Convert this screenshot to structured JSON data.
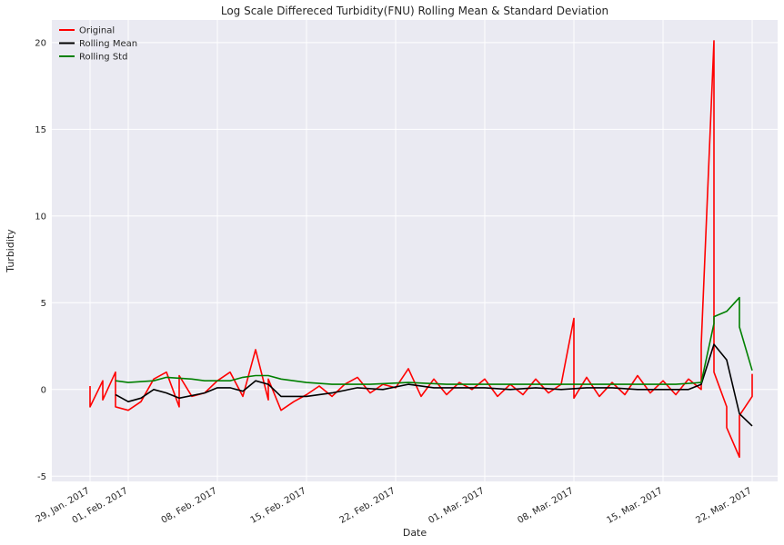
{
  "chart_data": {
    "type": "line",
    "title": "Log Scale Differeced Turbidity(FNU) Rolling Mean & Standard Deviation",
    "xlabel": "Date",
    "ylabel": "Turbidity",
    "x_tick_labels": [
      "29, Jan. 2017",
      "01, Feb. 2017",
      "08, Feb. 2017",
      "15, Feb. 2017",
      "22, Feb. 2017",
      "01, Mar. 2017",
      "08, Mar. 2017",
      "15, Mar. 2017",
      "22, Mar. 2017"
    ],
    "x_tick_dates": [
      "2017-01-29",
      "2017-02-01",
      "2017-02-08",
      "2017-02-15",
      "2017-02-22",
      "2017-03-01",
      "2017-03-08",
      "2017-03-15",
      "2017-03-22"
    ],
    "xlim": [
      "2017-01-26",
      "2017-03-24"
    ],
    "ylim": [
      -5.3,
      21.3
    ],
    "y_ticks": [
      -5,
      0,
      5,
      10,
      15,
      20
    ],
    "grid": true,
    "background": "#eaeaf2",
    "legend_position": "top-left",
    "series": [
      {
        "name": "Original",
        "color": "#ff0000",
        "points": [
          [
            "2017-01-29",
            0.2
          ],
          [
            "2017-01-29",
            -1.0
          ],
          [
            "2017-01-30",
            0.5
          ],
          [
            "2017-01-30",
            -0.6
          ],
          [
            "2017-01-31",
            1.0
          ],
          [
            "2017-01-31",
            -1.0
          ],
          [
            "2017-02-01",
            -1.2
          ],
          [
            "2017-02-02",
            -0.7
          ],
          [
            "2017-02-03",
            0.6
          ],
          [
            "2017-02-04",
            1.0
          ],
          [
            "2017-02-05",
            -1.0
          ],
          [
            "2017-02-05",
            0.8
          ],
          [
            "2017-02-06",
            -0.4
          ],
          [
            "2017-02-07",
            -0.2
          ],
          [
            "2017-02-08",
            0.5
          ],
          [
            "2017-02-09",
            1.0
          ],
          [
            "2017-02-10",
            -0.4
          ],
          [
            "2017-02-11",
            2.3
          ],
          [
            "2017-02-12",
            -0.6
          ],
          [
            "2017-02-12",
            0.6
          ],
          [
            "2017-02-13",
            -1.2
          ],
          [
            "2017-02-14",
            -0.7
          ],
          [
            "2017-02-15",
            -0.3
          ],
          [
            "2017-02-16",
            0.2
          ],
          [
            "2017-02-17",
            -0.4
          ],
          [
            "2017-02-18",
            0.3
          ],
          [
            "2017-02-19",
            0.7
          ],
          [
            "2017-02-20",
            -0.2
          ],
          [
            "2017-02-21",
            0.3
          ],
          [
            "2017-02-22",
            0.1
          ],
          [
            "2017-02-23",
            1.2
          ],
          [
            "2017-02-24",
            -0.4
          ],
          [
            "2017-02-25",
            0.6
          ],
          [
            "2017-02-26",
            -0.3
          ],
          [
            "2017-02-27",
            0.4
          ],
          [
            "2017-02-28",
            0.0
          ],
          [
            "2017-03-01",
            0.6
          ],
          [
            "2017-03-02",
            -0.4
          ],
          [
            "2017-03-03",
            0.3
          ],
          [
            "2017-03-04",
            -0.3
          ],
          [
            "2017-03-05",
            0.6
          ],
          [
            "2017-03-06",
            -0.2
          ],
          [
            "2017-03-07",
            0.3
          ],
          [
            "2017-03-08",
            4.1
          ],
          [
            "2017-03-08",
            -0.5
          ],
          [
            "2017-03-09",
            0.7
          ],
          [
            "2017-03-10",
            -0.4
          ],
          [
            "2017-03-11",
            0.4
          ],
          [
            "2017-03-12",
            -0.3
          ],
          [
            "2017-03-13",
            0.8
          ],
          [
            "2017-03-14",
            -0.2
          ],
          [
            "2017-03-15",
            0.5
          ],
          [
            "2017-03-16",
            -0.3
          ],
          [
            "2017-03-17",
            0.6
          ],
          [
            "2017-03-18",
            0.0
          ],
          [
            "2017-03-18",
            2.6
          ],
          [
            "2017-03-19",
            20.1
          ],
          [
            "2017-03-19",
            7.6
          ],
          [
            "2017-03-19",
            14.0
          ],
          [
            "2017-03-19",
            1.0
          ],
          [
            "2017-03-20",
            -1.0
          ],
          [
            "2017-03-20",
            -2.2
          ],
          [
            "2017-03-21",
            -3.9
          ],
          [
            "2017-03-21",
            -2.8
          ],
          [
            "2017-03-21",
            -1.5
          ],
          [
            "2017-03-22",
            -0.4
          ],
          [
            "2017-03-22",
            0.9
          ]
        ]
      },
      {
        "name": "Rolling Mean",
        "color": "#000000",
        "points": [
          [
            "2017-01-31",
            -0.3
          ],
          [
            "2017-02-01",
            -0.7
          ],
          [
            "2017-02-02",
            -0.5
          ],
          [
            "2017-02-03",
            0.0
          ],
          [
            "2017-02-04",
            -0.2
          ],
          [
            "2017-02-05",
            -0.5
          ],
          [
            "2017-02-07",
            -0.2
          ],
          [
            "2017-02-08",
            0.1
          ],
          [
            "2017-02-09",
            0.1
          ],
          [
            "2017-02-10",
            -0.1
          ],
          [
            "2017-02-11",
            0.5
          ],
          [
            "2017-02-12",
            0.3
          ],
          [
            "2017-02-13",
            -0.4
          ],
          [
            "2017-02-15",
            -0.4
          ],
          [
            "2017-02-17",
            -0.2
          ],
          [
            "2017-02-19",
            0.1
          ],
          [
            "2017-02-21",
            0.0
          ],
          [
            "2017-02-23",
            0.3
          ],
          [
            "2017-02-25",
            0.1
          ],
          [
            "2017-02-27",
            0.1
          ],
          [
            "2017-03-01",
            0.1
          ],
          [
            "2017-03-03",
            0.0
          ],
          [
            "2017-03-05",
            0.1
          ],
          [
            "2017-03-07",
            0.0
          ],
          [
            "2017-03-09",
            0.1
          ],
          [
            "2017-03-11",
            0.1
          ],
          [
            "2017-03-13",
            0.0
          ],
          [
            "2017-03-15",
            0.0
          ],
          [
            "2017-03-17",
            0.0
          ],
          [
            "2017-03-18",
            0.3
          ],
          [
            "2017-03-19",
            2.6
          ],
          [
            "2017-03-20",
            1.7
          ],
          [
            "2017-03-21",
            -1.4
          ],
          [
            "2017-03-22",
            -2.1
          ]
        ]
      },
      {
        "name": "Rolling Std",
        "color": "#008000",
        "points": [
          [
            "2017-01-31",
            0.5
          ],
          [
            "2017-02-01",
            0.4
          ],
          [
            "2017-02-03",
            0.5
          ],
          [
            "2017-02-04",
            0.7
          ],
          [
            "2017-02-06",
            0.6
          ],
          [
            "2017-02-07",
            0.5
          ],
          [
            "2017-02-09",
            0.5
          ],
          [
            "2017-02-10",
            0.7
          ],
          [
            "2017-02-11",
            0.8
          ],
          [
            "2017-02-12",
            0.8
          ],
          [
            "2017-02-13",
            0.6
          ],
          [
            "2017-02-15",
            0.4
          ],
          [
            "2017-02-17",
            0.3
          ],
          [
            "2017-02-20",
            0.3
          ],
          [
            "2017-02-23",
            0.4
          ],
          [
            "2017-02-26",
            0.3
          ],
          [
            "2017-03-01",
            0.3
          ],
          [
            "2017-03-04",
            0.3
          ],
          [
            "2017-03-07",
            0.3
          ],
          [
            "2017-03-10",
            0.3
          ],
          [
            "2017-03-13",
            0.3
          ],
          [
            "2017-03-16",
            0.3
          ],
          [
            "2017-03-18",
            0.4
          ],
          [
            "2017-03-19",
            3.8
          ],
          [
            "2017-03-19",
            4.2
          ],
          [
            "2017-03-20",
            4.5
          ],
          [
            "2017-03-21",
            5.3
          ],
          [
            "2017-03-21",
            3.6
          ],
          [
            "2017-03-22",
            1.1
          ]
        ]
      }
    ]
  }
}
